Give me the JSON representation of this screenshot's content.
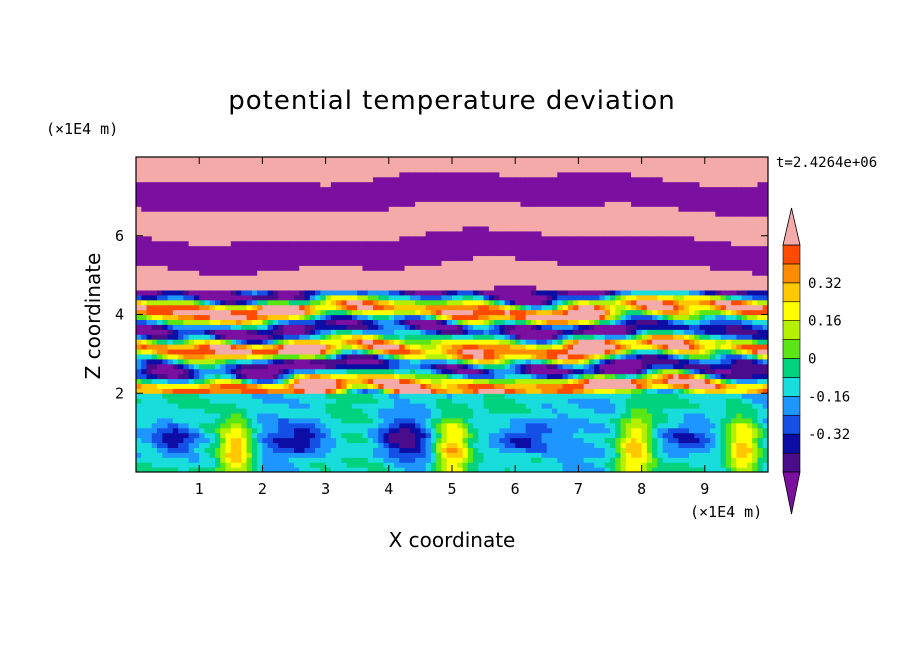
{
  "chart_data": {
    "type": "heatmap",
    "title": "potential temperature deviation",
    "xlabel": "X coordinate",
    "ylabel": "Z coordinate",
    "x_unit": "(×1E4 m)",
    "y_unit": "(×1E4 m)",
    "time_label": "t=2.4264e+06",
    "xlim": [
      0,
      10
    ],
    "ylim": [
      0,
      8
    ],
    "x_ticks": [
      "1",
      "2",
      "3",
      "4",
      "5",
      "6",
      "7",
      "8",
      "9"
    ],
    "y_ticks": [
      "2",
      "4",
      "6"
    ],
    "colorbar": {
      "levels": [
        -0.48,
        -0.4,
        -0.32,
        -0.24,
        -0.16,
        -0.08,
        0,
        0.08,
        0.16,
        0.24,
        0.32,
        0.4,
        0.48
      ],
      "colors": [
        "#4b0c8c",
        "#0d0da6",
        "#1450e6",
        "#1e96ff",
        "#19dcdc",
        "#00d27d",
        "#5ae614",
        "#b4f000",
        "#ffff00",
        "#ffc800",
        "#ff8c00",
        "#ff4b00",
        "#ff0000",
        "#f0f0f0"
      ],
      "under_color": "#7a0fa0",
      "over_color": "#f5aaaa",
      "tick_labels": [
        "0.32",
        "0.16",
        "0",
        "-0.16",
        "-0.32"
      ],
      "tick_values": [
        0.32,
        0.16,
        0,
        -0.16,
        -0.32
      ]
    }
  }
}
